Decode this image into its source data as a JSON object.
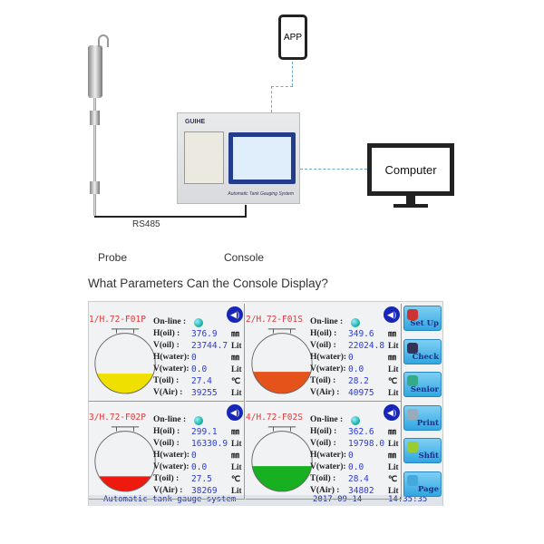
{
  "diagram": {
    "app": "APP",
    "computer": "Computer",
    "rs485": "RS485",
    "probe": "Probe",
    "console": "Console",
    "console_brand": "GUIHE",
    "console_system": "Automatic Tank Gauging System"
  },
  "heading": "What Parameters Can the Console Display?",
  "screen": {
    "field_labels": {
      "online": "On-line :",
      "h_oil": "H(oil) :",
      "v_oil": "V(oil) :",
      "h_water": "H(water):",
      "v_water": "V(water):",
      "t_oil": "T(oil) :",
      "v_air": "V(Air) :"
    },
    "units": {
      "mm": "㎜",
      "lit": "Lit",
      "c": "℃"
    },
    "tanks": [
      {
        "id": "1/H.72-F01P",
        "h_oil": "376.9",
        "v_oil": "23744.7",
        "h_water": "0",
        "v_water": "0.0",
        "t_oil": "27.4",
        "v_air": "39255",
        "fill_color": "#f0e000",
        "fill_level": 0.33
      },
      {
        "id": "2/H.72-F01S",
        "h_oil": "349.6",
        "v_oil": "22024.8",
        "h_water": "0",
        "v_water": "0.0",
        "t_oil": "28.2",
        "v_air": "40975",
        "fill_color": "#e5531a",
        "fill_level": 0.36
      },
      {
        "id": "3/H.72-F02P",
        "h_oil": "299.1",
        "v_oil": "16330.9",
        "h_water": "0",
        "v_water": "0.0",
        "t_oil": "27.5",
        "v_air": "38269",
        "fill_color": "#ee1a10",
        "fill_level": 0.25
      },
      {
        "id": "4/H.72-F02S",
        "h_oil": "362.6",
        "v_oil": "19798.0",
        "h_water": "0",
        "v_water": "0.0",
        "t_oil": "28.4",
        "v_air": "34802",
        "fill_color": "#17b020",
        "fill_level": 0.42
      }
    ],
    "buttons": [
      {
        "label": "Set Up",
        "icon": "setup-icon"
      },
      {
        "label": "Check",
        "icon": "check-icon"
      },
      {
        "label": "Senior",
        "icon": "senior-icon"
      },
      {
        "label": "Print",
        "icon": "print-icon"
      },
      {
        "label": "Shfit",
        "icon": "shift-icon"
      },
      {
        "label": "Page",
        "icon": "page-icon"
      }
    ],
    "status": {
      "title": "Automatic tank gauge system",
      "date": "2017-09-14",
      "time": "14:35:35"
    }
  }
}
